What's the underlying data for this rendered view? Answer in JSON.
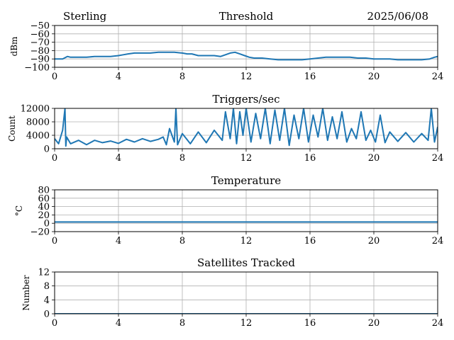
{
  "header": {
    "site": "Sterling",
    "date": "2025/06/08"
  },
  "chart_data": [
    {
      "type": "line",
      "title": "Threshold",
      "xlabel": "",
      "ylabel": "dBm",
      "xlim": [
        0,
        24
      ],
      "ylim": [
        -100,
        -50
      ],
      "xticks": [
        0,
        4,
        8,
        12,
        16,
        20,
        24
      ],
      "yticks": [
        -100,
        -90,
        -80,
        -70,
        -60,
        -50
      ],
      "ytick_labels": [
        "−100",
        "−90",
        "−80",
        "−70",
        "−60",
        "−50"
      ],
      "grid": true,
      "color": "#1f77b4",
      "series": [
        {
          "x": [
            0,
            0.5,
            0.8,
            1,
            1.5,
            2,
            2.5,
            3,
            3.5,
            4,
            4.3,
            4.6,
            5,
            5.5,
            6,
            6.5,
            7,
            7.5,
            8,
            8.3,
            8.6,
            9,
            9.5,
            10,
            10.4,
            10.7,
            11,
            11.3,
            11.6,
            11.9,
            12.2,
            12.5,
            13,
            13.5,
            14,
            14.5,
            15,
            15.5,
            16,
            16.5,
            17,
            17.5,
            18,
            18.5,
            19,
            19.5,
            20,
            20.5,
            21,
            21.5,
            22,
            22.5,
            23,
            23.5,
            23.8,
            24
          ],
          "y": [
            -90,
            -90,
            -87,
            -88,
            -88,
            -88,
            -87,
            -87,
            -87,
            -86,
            -85,
            -84,
            -83,
            -83,
            -83,
            -82,
            -82,
            -82,
            -83,
            -84,
            -84,
            -86,
            -86,
            -86,
            -87,
            -85,
            -83,
            -82,
            -84,
            -86,
            -88,
            -89,
            -89,
            -90,
            -91,
            -91,
            -91,
            -91,
            -90,
            -89,
            -88,
            -88,
            -88,
            -88,
            -89,
            -89,
            -90,
            -90,
            -90,
            -91,
            -91,
            -91,
            -91,
            -90,
            -88,
            -87
          ]
        }
      ]
    },
    {
      "type": "line",
      "title": "Triggers/sec",
      "xlabel": "",
      "ylabel": "Count",
      "xlim": [
        0,
        24
      ],
      "ylim": [
        0,
        12000
      ],
      "xticks": [
        0,
        4,
        8,
        12,
        16,
        20,
        24
      ],
      "yticks": [
        0,
        4000,
        8000,
        12000
      ],
      "ytick_labels": [
        "0",
        "4000",
        "8000",
        "12000"
      ],
      "grid": true,
      "color": "#1f77b4",
      "series": [
        {
          "x": [
            0.0,
            0.25,
            0.5,
            0.65,
            0.7,
            0.75,
            1.0,
            1.5,
            2.0,
            2.5,
            3.0,
            3.5,
            4.0,
            4.5,
            5.0,
            5.5,
            6.0,
            6.5,
            6.8,
            7.0,
            7.2,
            7.5,
            7.6,
            7.7,
            8.0,
            8.5,
            9.0,
            9.5,
            10.0,
            10.5,
            10.7,
            11.0,
            11.2,
            11.4,
            11.6,
            11.8,
            12.0,
            12.3,
            12.6,
            12.9,
            13.2,
            13.5,
            13.8,
            14.1,
            14.4,
            14.7,
            15.0,
            15.3,
            15.6,
            15.9,
            16.2,
            16.5,
            16.8,
            17.1,
            17.4,
            17.7,
            18.0,
            18.3,
            18.6,
            18.9,
            19.2,
            19.5,
            19.8,
            20.1,
            20.4,
            20.7,
            21.0,
            21.5,
            22.0,
            22.5,
            23.0,
            23.4,
            23.6,
            23.8,
            24.0
          ],
          "y": [
            3000,
            1500,
            5500,
            12000,
            800,
            3500,
            1500,
            2500,
            1200,
            2500,
            1800,
            2300,
            1600,
            2800,
            2000,
            3000,
            2200,
            2800,
            3500,
            1200,
            6000,
            2000,
            12000,
            1200,
            4500,
            1500,
            5000,
            1800,
            5500,
            2500,
            11000,
            3000,
            12000,
            1500,
            11000,
            4000,
            12000,
            2000,
            10500,
            3000,
            12000,
            1500,
            11500,
            2500,
            12000,
            1000,
            10000,
            3000,
            12000,
            2000,
            10000,
            3500,
            12000,
            2500,
            9500,
            3000,
            11000,
            2000,
            6000,
            3000,
            11000,
            2500,
            5500,
            2000,
            10000,
            1800,
            5000,
            2200,
            4800,
            2000,
            4500,
            2500,
            12000,
            2000,
            6500
          ]
        }
      ]
    },
    {
      "type": "line",
      "title": "Temperature",
      "xlabel": "",
      "ylabel": "°C",
      "xlim": [
        0,
        24
      ],
      "ylim": [
        -20,
        80
      ],
      "xticks": [
        0,
        4,
        8,
        12,
        16,
        20,
        24
      ],
      "yticks": [
        -20,
        0,
        20,
        40,
        60,
        80
      ],
      "ytick_labels": [
        "−20",
        "0",
        "20",
        "40",
        "60",
        "80"
      ],
      "grid": true,
      "color": "#1f77b4",
      "series": [
        {
          "x": [
            0,
            24
          ],
          "y": [
            3,
            3
          ]
        }
      ]
    },
    {
      "type": "line",
      "title": "Satellites Tracked",
      "xlabel": "",
      "ylabel": "Number",
      "xlim": [
        0,
        24
      ],
      "ylim": [
        0,
        12
      ],
      "xticks": [
        0,
        4,
        8,
        12,
        16,
        20,
        24
      ],
      "yticks": [
        0,
        4,
        8,
        12
      ],
      "ytick_labels": [
        "0",
        "4",
        "8",
        "12"
      ],
      "grid": true,
      "color": "#1f77b4",
      "series": [
        {
          "x": [
            0,
            24
          ],
          "y": [
            0,
            0
          ]
        }
      ]
    }
  ]
}
